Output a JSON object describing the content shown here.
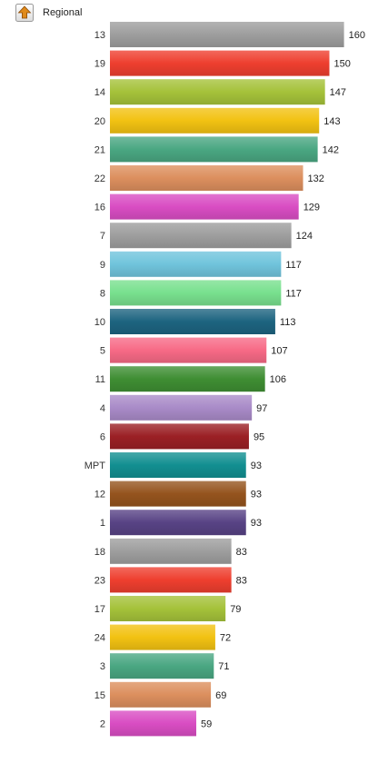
{
  "header": {
    "drill_up_icon": "drill-up-arrow-icon",
    "label": "Regional"
  },
  "chart_data": {
    "type": "bar",
    "orientation": "horizontal",
    "title": "",
    "xlabel": "",
    "ylabel": "",
    "grid": false,
    "categories": [
      "13",
      "19",
      "14",
      "20",
      "21",
      "22",
      "16",
      "7",
      "9",
      "8",
      "10",
      "5",
      "11",
      "4",
      "6",
      "MPT",
      "12",
      "1",
      "18",
      "23",
      "17",
      "24",
      "3",
      "15",
      "2"
    ],
    "values": [
      160,
      150,
      147,
      143,
      142,
      132,
      129,
      124,
      117,
      117,
      113,
      107,
      106,
      97,
      95,
      93,
      93,
      93,
      83,
      83,
      79,
      72,
      71,
      69,
      59
    ],
    "colors": [
      "#9e9e9e",
      "#ee3f2f",
      "#a5c23a",
      "#f2c212",
      "#4aa782",
      "#dc8f5e",
      "#d94dc3",
      "#9e9e9e",
      "#70c4dc",
      "#78e08e",
      "#1d6480",
      "#f76a86",
      "#3f8e33",
      "#a98bc8",
      "#9b2025",
      "#128f91",
      "#95541e",
      "#584385",
      "#9e9e9e",
      "#ee3f2f",
      "#a5c23a",
      "#f2c212",
      "#4aa782",
      "#dc8f5e",
      "#d94dc3"
    ]
  }
}
